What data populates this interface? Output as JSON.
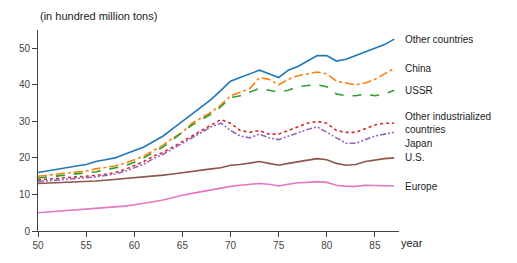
{
  "chart_data": {
    "type": "line",
    "x": [
      50,
      51,
      52,
      53,
      54,
      55,
      56,
      57,
      58,
      59,
      60,
      61,
      62,
      63,
      64,
      65,
      66,
      67,
      68,
      69,
      70,
      71,
      72,
      73,
      74,
      75,
      76,
      77,
      78,
      79,
      80,
      81,
      82,
      83,
      84,
      85,
      86,
      87
    ],
    "series": [
      {
        "name": "Other countries",
        "line_style": "solid",
        "values": [
          16.0,
          16.5,
          17.0,
          17.5,
          17.8,
          18.2,
          19.0,
          19.5,
          20.0,
          21.0,
          22.0,
          23.0,
          24.5,
          26.0,
          28.0,
          30.0,
          32.0,
          34.0,
          36.0,
          38.5,
          41.0,
          42.0,
          43.0,
          44.0,
          43.0,
          42.0,
          44.0,
          45.0,
          46.5,
          48.0,
          48.0,
          46.5,
          47.0,
          48.0,
          49.0,
          50.0,
          51.0,
          52.5
        ]
      },
      {
        "name": "China",
        "line_style": "dashdot",
        "values": [
          15.0,
          15.3,
          15.6,
          15.9,
          16.1,
          16.4,
          17.0,
          17.4,
          17.8,
          18.5,
          19.5,
          20.5,
          22.0,
          23.5,
          25.5,
          27.0,
          29.5,
          31.0,
          32.5,
          34.5,
          37.0,
          38.0,
          39.0,
          42.0,
          41.5,
          40.0,
          41.5,
          42.5,
          43.0,
          43.5,
          43.0,
          41.0,
          40.5,
          40.0,
          40.5,
          41.5,
          43.0,
          44.5
        ]
      },
      {
        "name": "USSR",
        "line_style": "dashed",
        "values": [
          14.5,
          14.8,
          15.0,
          15.3,
          15.5,
          15.8,
          16.2,
          16.7,
          17.2,
          17.8,
          18.8,
          20.0,
          21.5,
          23.0,
          25.0,
          27.0,
          29.0,
          30.5,
          32.0,
          34.0,
          36.5,
          37.0,
          38.0,
          39.0,
          38.5,
          38.0,
          38.5,
          39.5,
          39.8,
          40.0,
          39.5,
          37.5,
          37.0,
          37.0,
          37.5,
          37.0,
          37.5,
          38.5
        ]
      },
      {
        "name": "Other industrialized countries",
        "line_style": "dotted",
        "values": [
          14.0,
          14.2,
          14.4,
          14.5,
          14.6,
          14.8,
          15.2,
          15.5,
          16.0,
          16.8,
          18.0,
          19.0,
          20.5,
          21.5,
          23.0,
          24.5,
          26.0,
          27.5,
          29.0,
          30.5,
          29.5,
          27.5,
          27.0,
          27.5,
          26.5,
          26.5,
          27.5,
          28.5,
          29.5,
          30.0,
          29.5,
          27.5,
          27.0,
          27.0,
          28.0,
          29.0,
          29.5,
          29.5
        ]
      },
      {
        "name": "Japan",
        "line_style": "dashdotdotted",
        "values": [
          13.5,
          13.7,
          13.9,
          14.0,
          14.2,
          14.5,
          14.8,
          15.2,
          15.6,
          16.3,
          17.3,
          18.3,
          19.8,
          21.0,
          22.5,
          24.0,
          25.5,
          27.0,
          28.5,
          29.5,
          27.5,
          26.0,
          25.5,
          26.5,
          25.5,
          25.0,
          26.0,
          27.0,
          27.8,
          28.5,
          27.0,
          25.5,
          24.0,
          24.0,
          25.0,
          26.0,
          26.5,
          27.0
        ]
      },
      {
        "name": "U.S.",
        "line_style": "solid",
        "values": [
          13.0,
          13.1,
          13.2,
          13.3,
          13.4,
          13.5,
          13.7,
          13.9,
          14.1,
          14.3,
          14.6,
          14.8,
          15.0,
          15.3,
          15.6,
          16.0,
          16.3,
          16.6,
          17.0,
          17.3,
          18.0,
          18.2,
          18.6,
          19.0,
          18.5,
          18.0,
          18.5,
          19.0,
          19.5,
          19.8,
          19.5,
          18.5,
          18.0,
          18.2,
          19.0,
          19.5,
          19.8,
          20.0
        ]
      },
      {
        "name": "Europe",
        "line_style": "solid",
        "values": [
          5.0,
          5.2,
          5.4,
          5.5,
          5.6,
          5.8,
          6.0,
          6.3,
          6.5,
          6.8,
          7.2,
          7.5,
          8.0,
          8.5,
          9.2,
          9.8,
          10.3,
          10.8,
          11.3,
          11.8,
          12.2,
          12.5,
          12.7,
          13.0,
          12.8,
          12.3,
          12.8,
          13.2,
          13.3,
          13.5,
          13.3,
          12.5,
          12.2,
          12.2,
          12.5,
          12.5,
          12.3,
          12.3
        ]
      }
    ],
    "xlim": [
      50,
      87.5
    ],
    "ylim": [
      0,
      55
    ],
    "xticks": [
      50,
      55,
      60,
      65,
      70,
      75,
      80,
      85
    ],
    "yticks": [
      0,
      10,
      20,
      30,
      40,
      50
    ],
    "ylabel": "(in hundred million tons)",
    "xlabel": "year",
    "grid": false
  }
}
